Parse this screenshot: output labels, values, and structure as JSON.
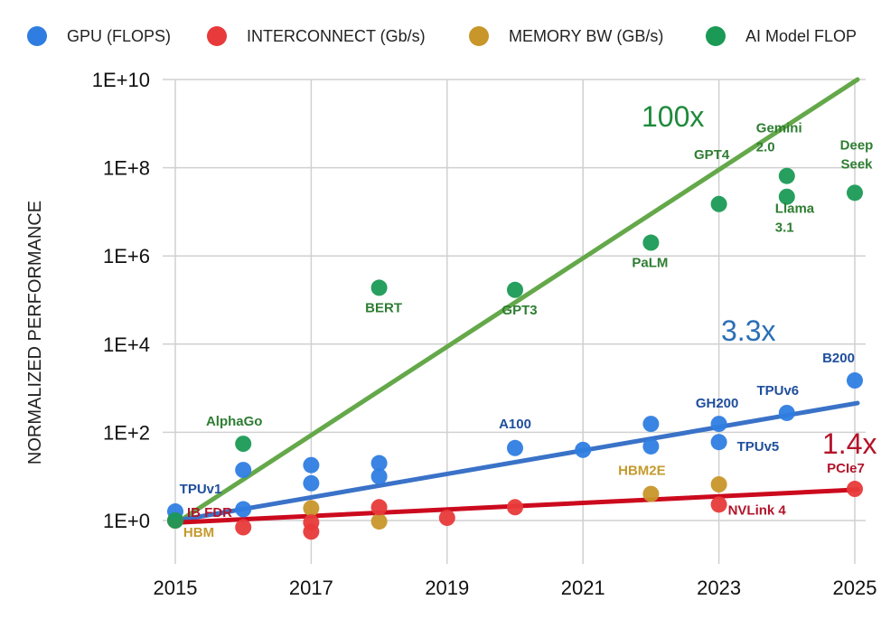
{
  "chart_data": {
    "type": "scatter",
    "title": "",
    "xlabel": "",
    "ylabel": "NORMALIZED PERFORMANCE",
    "yscale": "log",
    "xlim": [
      2015,
      2025
    ],
    "ylim": [
      1,
      10000000000
    ],
    "x_ticks": [
      "2015",
      "2017",
      "2019",
      "2021",
      "2023",
      "2025"
    ],
    "y_ticks": [
      "1E+0",
      "1E+2",
      "1E+4",
      "1E+6",
      "1E+8",
      "1E+10"
    ],
    "grid": true,
    "legend_position": "top",
    "series": [
      {
        "name": "GPU (FLOPS)",
        "color": "#2f7de1",
        "label_color": "#1f4e9c",
        "points": [
          {
            "x": 2015,
            "y": 1.6,
            "label": "TPUv1"
          },
          {
            "x": 2016,
            "y": 1.8
          },
          {
            "x": 2016,
            "y": 14
          },
          {
            "x": 2017,
            "y": 7
          },
          {
            "x": 2017,
            "y": 18
          },
          {
            "x": 2018,
            "y": 10
          },
          {
            "x": 2018,
            "y": 20
          },
          {
            "x": 2020,
            "y": 44,
            "label": "A100"
          },
          {
            "x": 2021,
            "y": 40
          },
          {
            "x": 2022,
            "y": 48
          },
          {
            "x": 2022,
            "y": 155
          },
          {
            "x": 2023,
            "y": 155,
            "label": "GH200"
          },
          {
            "x": 2023,
            "y": 60,
            "label": "TPUv5"
          },
          {
            "x": 2024,
            "y": 275,
            "label": "TPUv6"
          },
          {
            "x": 2025,
            "y": 1500,
            "label": "B200"
          }
        ],
        "trend": {
          "x": [
            2015,
            2025
          ],
          "y": [
            1,
            460
          ],
          "color": "#3a72c8",
          "annotation": "3.3x"
        }
      },
      {
        "name": "INTERCONNECT (Gb/s)",
        "color": "#e83a3a",
        "label_color": "#b3142a",
        "points": [
          {
            "x": 2015,
            "y": 1,
            "label": "IB FDR"
          },
          {
            "x": 2016,
            "y": 0.7
          },
          {
            "x": 2017,
            "y": 0.56
          },
          {
            "x": 2017,
            "y": 0.9
          },
          {
            "x": 2018,
            "y": 2
          },
          {
            "x": 2019,
            "y": 1.15
          },
          {
            "x": 2020,
            "y": 2
          },
          {
            "x": 2023,
            "y": 2.3,
            "label": "NVLink 4"
          },
          {
            "x": 2025,
            "y": 5.2,
            "label": "PCIe7"
          }
        ],
        "trend": {
          "x": [
            2015,
            2025
          ],
          "y": [
            0.9,
            5
          ],
          "color": "#cc0a1e",
          "annotation": "1.4x"
        }
      },
      {
        "name": "MEMORY BW (GB/s)",
        "color": "#c8962a",
        "label_color": "#c49a2e",
        "points": [
          {
            "x": 2015,
            "y": 1,
            "label": "HBM"
          },
          {
            "x": 2017,
            "y": 1.9
          },
          {
            "x": 2018,
            "y": 0.95
          },
          {
            "x": 2022,
            "y": 4,
            "label": "HBM2E"
          },
          {
            "x": 2023,
            "y": 6.6
          }
        ]
      },
      {
        "name": "AI Model FLOP",
        "color": "#1b9a55",
        "label_color": "#2e7d32",
        "points": [
          {
            "x": 2015,
            "y": 1
          },
          {
            "x": 2016,
            "y": 55,
            "label": "AlphaGo"
          },
          {
            "x": 2018,
            "y": 190000,
            "label": "BERT"
          },
          {
            "x": 2020,
            "y": 170000,
            "label": "GPT3"
          },
          {
            "x": 2022,
            "y": 2000000,
            "label": "PaLM"
          },
          {
            "x": 2023,
            "y": 15000000,
            "label": "GPT4"
          },
          {
            "x": 2024,
            "y": 65000000,
            "label": "Gemini 2.0"
          },
          {
            "x": 2024,
            "y": 22000000,
            "label": "Llama 3.1"
          },
          {
            "x": 2025,
            "y": 27000000,
            "label": "Deep Seek"
          }
        ],
        "trend": {
          "x": [
            2015,
            2025
          ],
          "y": [
            0.9,
            10000000000
          ],
          "color": "#64a84a",
          "annotation": "100x"
        }
      }
    ]
  }
}
